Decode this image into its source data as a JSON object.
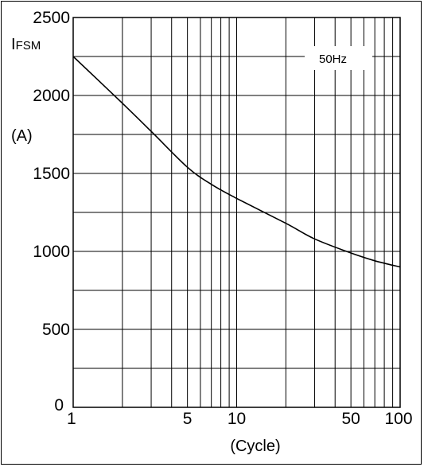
{
  "chart_data": {
    "type": "line",
    "x_scale": "log",
    "xlim": [
      1,
      100
    ],
    "ylim": [
      0,
      2500
    ],
    "x_ticks": [
      {
        "value": 1,
        "label": "1"
      },
      {
        "value": 5,
        "label": "5"
      },
      {
        "value": 10,
        "label": "10"
      },
      {
        "value": 50,
        "label": "50"
      },
      {
        "value": 100,
        "label": "100"
      }
    ],
    "y_ticks": [
      {
        "value": 0,
        "label": "0"
      },
      {
        "value": 500,
        "label": "500"
      },
      {
        "value": 1000,
        "label": "1000"
      },
      {
        "value": 1500,
        "label": "1500"
      },
      {
        "value": 2000,
        "label": "2000"
      },
      {
        "value": 2500,
        "label": "2500"
      }
    ],
    "x_minor_gridlines": [
      2,
      3,
      4,
      5,
      6,
      7,
      8,
      9,
      10,
      20,
      30,
      40,
      50,
      60,
      70,
      80,
      90
    ],
    "y_minor_gridlines": [
      250,
      750,
      1250,
      1750,
      2250
    ],
    "ylabel_main": "I",
    "ylabel_sub": "FSM",
    "ylabel_unit": "(A)",
    "xlabel": "(Cycle)",
    "annotation": "50Hz",
    "grid": true,
    "series": [
      {
        "x": [
          1,
          2,
          3,
          5,
          7,
          10,
          20,
          30,
          50,
          70,
          100
        ],
        "y": [
          2250,
          1950,
          1770,
          1540,
          1430,
          1340,
          1180,
          1080,
          990,
          940,
          900
        ]
      }
    ]
  }
}
